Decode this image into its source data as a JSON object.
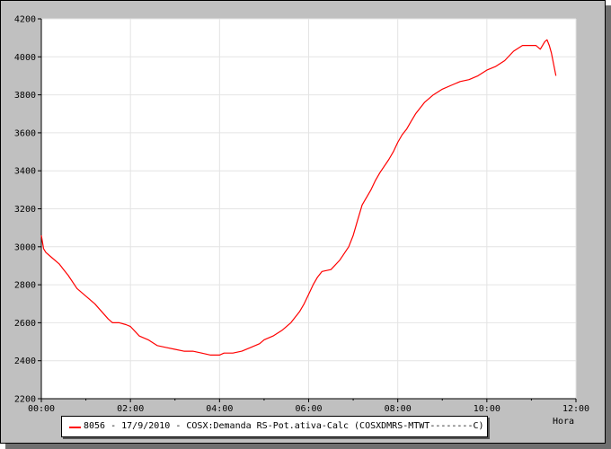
{
  "colors": {
    "frame_background": "#c0c0c0",
    "plot_background": "#ffffff",
    "grid": "#e4e4e4",
    "series": "#ff0000"
  },
  "chart_data": {
    "type": "line",
    "title": "",
    "xlabel": "Hora",
    "ylabel": "",
    "x_unit": "hours",
    "xlim": [
      0,
      12
    ],
    "ylim": [
      2200,
      4200
    ],
    "x_ticks": [
      0,
      2,
      4,
      6,
      8,
      10,
      12
    ],
    "x_tick_labels": [
      "00:00",
      "02:00",
      "04:00",
      "06:00",
      "08:00",
      "10:00",
      "12:00"
    ],
    "y_ticks": [
      2200,
      2400,
      2600,
      2800,
      3000,
      3200,
      3400,
      3600,
      3800,
      4000,
      4200
    ],
    "y_tick_labels": [
      "2200",
      "2400",
      "2600",
      "2800",
      "3000",
      "3200",
      "3400",
      "3600",
      "3800",
      "4000",
      "4200"
    ],
    "grid": true,
    "legend_position": "bottom",
    "series": [
      {
        "name": "8056 - 17/9/2010 - COSX:Demanda RS-Pot.ativa-Calc (COSXDMRS-MTWT--------C)",
        "color": "#ff0000",
        "x": [
          0,
          0.05,
          0.1,
          0.25,
          0.4,
          0.5,
          0.6,
          0.8,
          1.0,
          1.2,
          1.35,
          1.5,
          1.6,
          1.75,
          1.9,
          2.0,
          2.2,
          2.4,
          2.6,
          2.8,
          3.0,
          3.2,
          3.4,
          3.6,
          3.8,
          4.0,
          4.1,
          4.3,
          4.5,
          4.7,
          4.9,
          5.0,
          5.2,
          5.4,
          5.6,
          5.8,
          5.9,
          6.0,
          6.1,
          6.2,
          6.3,
          6.5,
          6.7,
          6.9,
          7.0,
          7.1,
          7.2,
          7.4,
          7.5,
          7.6,
          7.8,
          7.9,
          8.0,
          8.1,
          8.2,
          8.3,
          8.4,
          8.5,
          8.6,
          8.8,
          9.0,
          9.2,
          9.4,
          9.6,
          9.8,
          10.0,
          10.2,
          10.4,
          10.6,
          10.8,
          11.0,
          11.1,
          11.2,
          11.3,
          11.35,
          11.4,
          11.45,
          11.5,
          11.55
        ],
        "y": [
          3060,
          2990,
          2970,
          2940,
          2910,
          2880,
          2850,
          2780,
          2740,
          2700,
          2660,
          2620,
          2600,
          2600,
          2590,
          2580,
          2530,
          2510,
          2480,
          2470,
          2460,
          2450,
          2450,
          2440,
          2430,
          2430,
          2440,
          2440,
          2450,
          2470,
          2490,
          2510,
          2530,
          2560,
          2600,
          2660,
          2700,
          2750,
          2800,
          2840,
          2870,
          2880,
          2930,
          3000,
          3060,
          3140,
          3220,
          3300,
          3350,
          3390,
          3460,
          3500,
          3550,
          3590,
          3620,
          3660,
          3700,
          3730,
          3760,
          3800,
          3830,
          3850,
          3870,
          3880,
          3900,
          3930,
          3950,
          3980,
          4030,
          4060,
          4060,
          4060,
          4040,
          4080,
          4090,
          4060,
          4020,
          3960,
          3900
        ]
      }
    ]
  }
}
